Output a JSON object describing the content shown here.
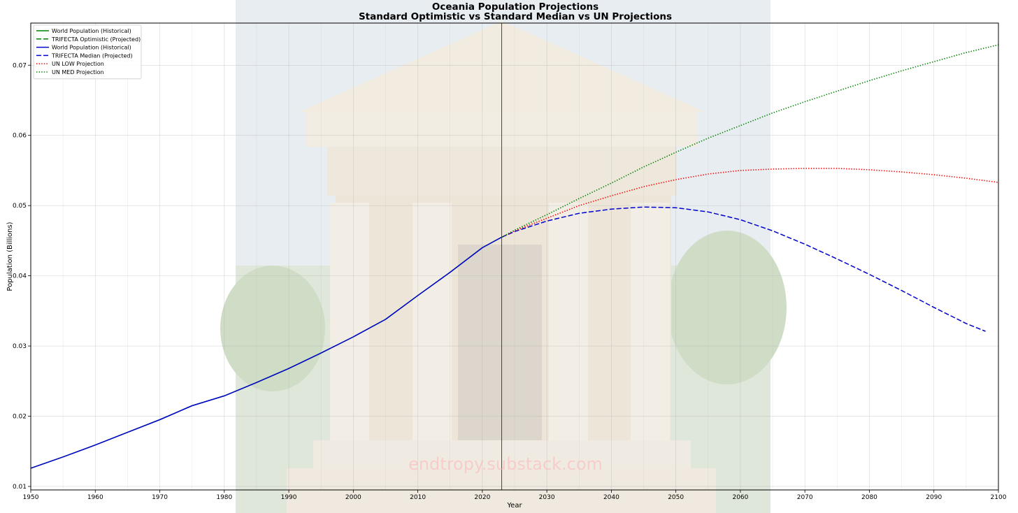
{
  "chart_data": {
    "type": "line",
    "title": "Oceania Population Projections",
    "subtitle": "Standard Optimistic vs Standard Median vs UN Projections",
    "xlabel": "Year",
    "ylabel": "Population (Billions)",
    "xlim": [
      1950,
      2100
    ],
    "ylim": [
      0.0095,
      0.076
    ],
    "x_ticks": [
      1950,
      1960,
      1970,
      1980,
      1990,
      2000,
      2010,
      2020,
      2030,
      2040,
      2050,
      2060,
      2070,
      2080,
      2090,
      2100
    ],
    "y_ticks": [
      0.01,
      0.02,
      0.03,
      0.04,
      0.05,
      0.06,
      0.07
    ],
    "y_tick_labels": [
      "0.01",
      "0.02",
      "0.03",
      "0.04",
      "0.05",
      "0.06",
      "0.07"
    ],
    "grid": true,
    "legend_position": "top-left",
    "reference_line_year": 2023,
    "watermark": "endtropy.substack.com",
    "series": [
      {
        "name": "World Population (Historical)",
        "color": "#008000",
        "style": "solid",
        "x": [
          1950,
          1955,
          1960,
          1965,
          1970,
          1975,
          1980,
          1985,
          1990,
          1995,
          2000,
          2005,
          2010,
          2015,
          2020,
          2023
        ],
        "y": [
          0.0126,
          0.0142,
          0.0159,
          0.0177,
          0.0195,
          0.0215,
          0.0229,
          0.0248,
          0.0268,
          0.029,
          0.0313,
          0.0338,
          0.0372,
          0.0405,
          0.044,
          0.0455
        ]
      },
      {
        "name": "TRIFECTA Optimistic (Projected)",
        "color": "#008000",
        "style": "dashed",
        "x": [],
        "y": []
      },
      {
        "name": "World Population (Historical)",
        "color": "#0000cc",
        "style": "solid",
        "x": [
          1950,
          1955,
          1960,
          1965,
          1970,
          1975,
          1980,
          1985,
          1990,
          1995,
          2000,
          2005,
          2010,
          2015,
          2020,
          2023
        ],
        "y": [
          0.0126,
          0.0142,
          0.0159,
          0.0177,
          0.0195,
          0.0215,
          0.0229,
          0.0248,
          0.0268,
          0.029,
          0.0313,
          0.0338,
          0.0372,
          0.0405,
          0.044,
          0.0455
        ]
      },
      {
        "name": "TRIFECTA Median (Projected)",
        "color": "#0000cc",
        "style": "dashed",
        "x": [
          2023,
          2025,
          2030,
          2035,
          2040,
          2045,
          2050,
          2055,
          2060,
          2065,
          2070,
          2075,
          2080,
          2085,
          2090,
          2095,
          2098
        ],
        "y": [
          0.0455,
          0.0463,
          0.0478,
          0.0489,
          0.0495,
          0.0498,
          0.0497,
          0.0491,
          0.048,
          0.0464,
          0.0445,
          0.0424,
          0.0402,
          0.0379,
          0.0355,
          0.0332,
          0.0321
        ]
      },
      {
        "name": "UN LOW Projection",
        "color": "#ff0000",
        "style": "dotted",
        "x": [
          2023,
          2025,
          2030,
          2035,
          2040,
          2045,
          2050,
          2055,
          2060,
          2065,
          2070,
          2075,
          2080,
          2085,
          2090,
          2095,
          2100
        ],
        "y": [
          0.0455,
          0.0464,
          0.0482,
          0.05,
          0.0514,
          0.0527,
          0.0537,
          0.0545,
          0.055,
          0.0552,
          0.0553,
          0.0553,
          0.0551,
          0.0548,
          0.0544,
          0.0539,
          0.0533
        ]
      },
      {
        "name": "UN MED Projection",
        "color": "#008000",
        "style": "dotted",
        "x": [
          2023,
          2025,
          2030,
          2035,
          2040,
          2045,
          2050,
          2055,
          2060,
          2065,
          2070,
          2075,
          2080,
          2085,
          2090,
          2095,
          2100
        ],
        "y": [
          0.0455,
          0.0465,
          0.0487,
          0.051,
          0.0532,
          0.0555,
          0.0576,
          0.0596,
          0.0614,
          0.0632,
          0.0648,
          0.0663,
          0.0678,
          0.0692,
          0.0705,
          0.0718,
          0.0729
        ]
      }
    ]
  }
}
